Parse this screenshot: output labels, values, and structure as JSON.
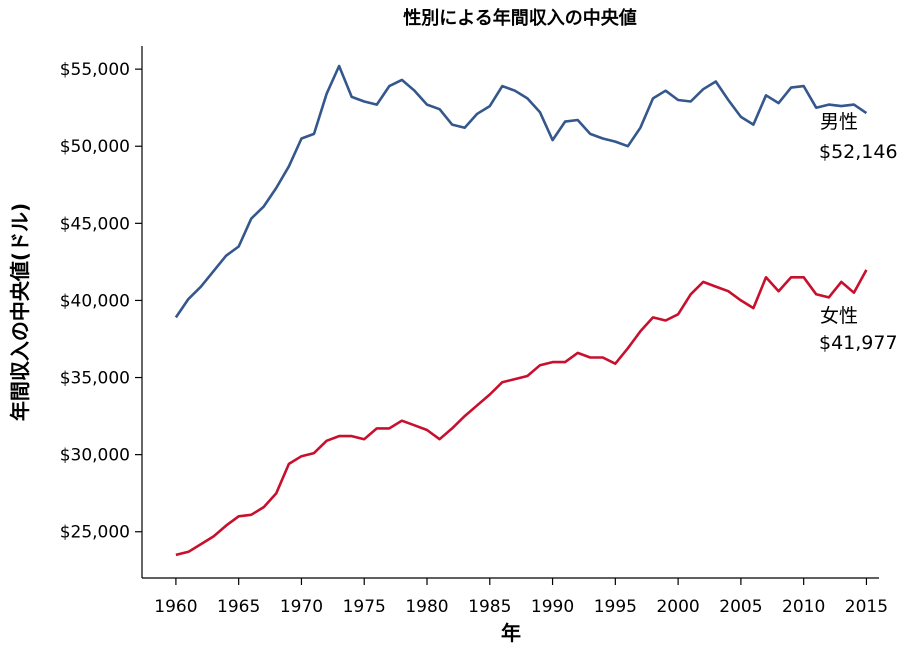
{
  "chart_data": {
    "type": "line",
    "title": "性別による年間収入の中央値",
    "xlabel": "年",
    "ylabel": "年間収入の中央値(ドル)",
    "xlim": [
      1957.3,
      2016
    ],
    "ylim": [
      22000,
      56500
    ],
    "x_ticks": [
      1960,
      1965,
      1970,
      1975,
      1980,
      1985,
      1990,
      1995,
      2000,
      2005,
      2010,
      2015
    ],
    "x_tick_labels": [
      "1960",
      "1965",
      "1970",
      "1975",
      "1980",
      "1985",
      "1990",
      "1995",
      "2000",
      "2005",
      "2010",
      "2015"
    ],
    "y_ticks": [
      25000,
      30000,
      35000,
      40000,
      45000,
      50000,
      55000
    ],
    "y_tick_labels": [
      "$25,000",
      "$30,000",
      "$35,000",
      "$40,000",
      "$45,000",
      "$50,000",
      "$55,000"
    ],
    "grid": false,
    "legend": "none",
    "x": [
      1960,
      1961,
      1962,
      1963,
      1964,
      1965,
      1966,
      1967,
      1968,
      1969,
      1970,
      1971,
      1972,
      1973,
      1974,
      1975,
      1976,
      1977,
      1978,
      1979,
      1980,
      1981,
      1982,
      1983,
      1984,
      1985,
      1986,
      1987,
      1988,
      1989,
      1990,
      1991,
      1992,
      1993,
      1994,
      1995,
      1996,
      1997,
      1998,
      1999,
      2000,
      2001,
      2002,
      2003,
      2004,
      2005,
      2006,
      2007,
      2008,
      2009,
      2010,
      2011,
      2012,
      2013,
      2014,
      2015
    ],
    "series": [
      {
        "name": "男性",
        "end_label": "$52,146",
        "color": "#34578c",
        "values": [
          38900,
          40100,
          40900,
          41900,
          42900,
          43500,
          45300,
          46100,
          47300,
          48700,
          50500,
          50800,
          53400,
          55200,
          53200,
          52900,
          52700,
          53900,
          54300,
          53600,
          52700,
          52400,
          51400,
          51200,
          52100,
          52600,
          53900,
          53600,
          53100,
          52200,
          50400,
          51600,
          51700,
          50800,
          50500,
          50300,
          50000,
          51200,
          53100,
          53600,
          53000,
          52900,
          53700,
          54200,
          53000,
          51900,
          51400,
          53300,
          52800,
          53800,
          53900,
          52500,
          52700,
          52600,
          52700,
          52146
        ]
      },
      {
        "name": "女性",
        "end_label": "$41,977",
        "color": "#c8102e",
        "values": [
          23500,
          23700,
          24200,
          24700,
          25400,
          26000,
          26100,
          26600,
          27500,
          29400,
          29900,
          30100,
          30900,
          31200,
          31200,
          31000,
          31700,
          31700,
          32200,
          31900,
          31600,
          31000,
          31700,
          32500,
          33200,
          33900,
          34700,
          34900,
          35100,
          35800,
          36000,
          36000,
          36600,
          36300,
          36300,
          35900,
          36900,
          38000,
          38900,
          38700,
          39100,
          40400,
          41200,
          40900,
          40600,
          40000,
          39500,
          41500,
          40600,
          41500,
          41500,
          40400,
          40200,
          41200,
          40500,
          41977
        ]
      }
    ]
  }
}
